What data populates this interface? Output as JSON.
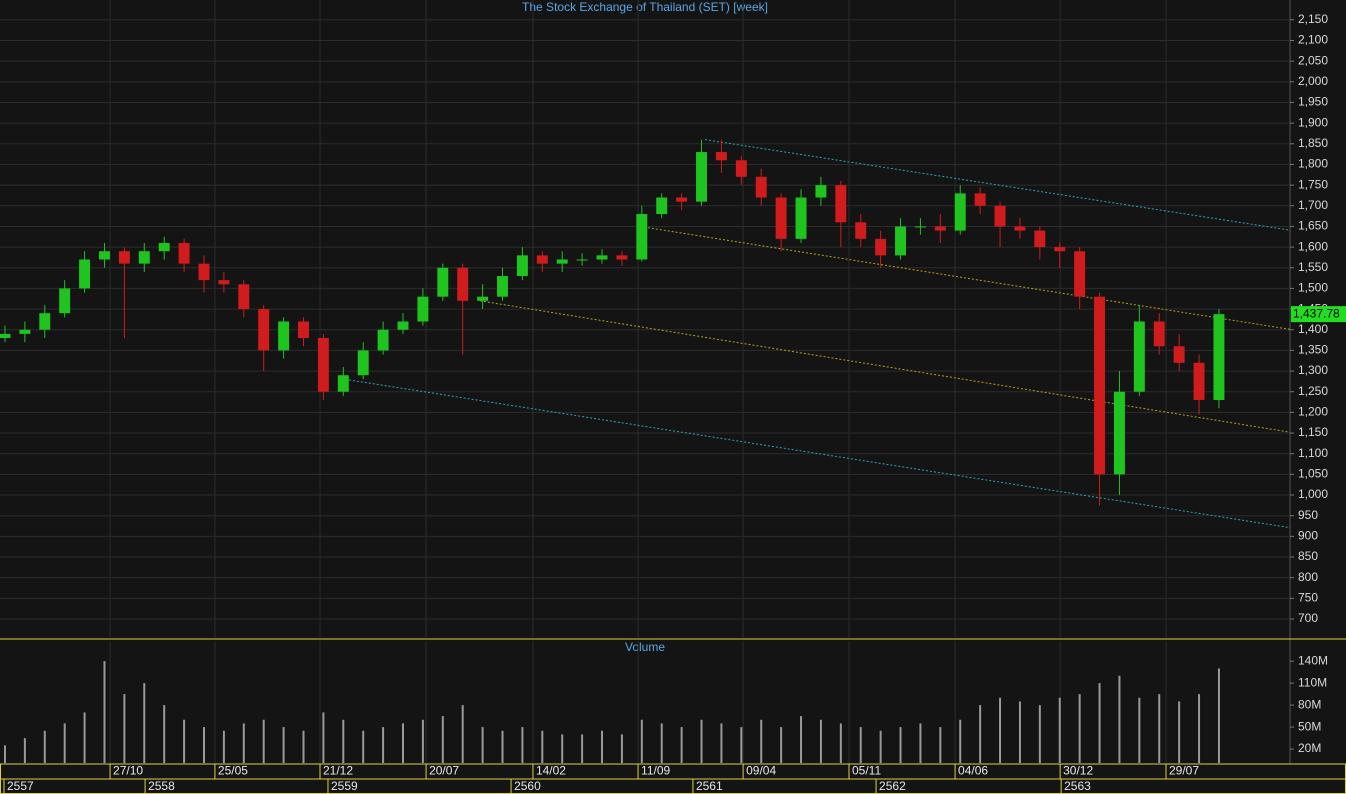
{
  "chart_data": {
    "type": "candlestick",
    "title": "The Stock Exchange of Thailand (SET) [week]",
    "volume_title": "Volume",
    "open": [
      1380,
      1390,
      1400,
      1440,
      1500,
      1570,
      1590,
      1560,
      1590,
      1610,
      1560,
      1520,
      1510,
      1450,
      1350,
      1420,
      1380,
      1250,
      1290,
      1350,
      1400,
      1420,
      1480,
      1550,
      1470,
      1480,
      1530,
      1580,
      1560,
      1570,
      1570,
      1580,
      1570,
      1680,
      1720,
      1710,
      1830,
      1810,
      1770,
      1720,
      1620,
      1720,
      1750,
      1660,
      1620,
      1580,
      1650,
      1650,
      1640,
      1730,
      1700,
      1650,
      1640,
      1600,
      1590,
      1480,
      1050,
      1250,
      1420,
      1360,
      1320,
      1230
    ],
    "high": [
      1410,
      1420,
      1460,
      1520,
      1590,
      1610,
      1600,
      1610,
      1625,
      1620,
      1580,
      1540,
      1520,
      1460,
      1430,
      1430,
      1390,
      1310,
      1370,
      1420,
      1440,
      1500,
      1560,
      1560,
      1510,
      1550,
      1600,
      1590,
      1590,
      1585,
      1595,
      1590,
      1700,
      1730,
      1730,
      1860,
      1860,
      1820,
      1790,
      1730,
      1740,
      1770,
      1760,
      1680,
      1640,
      1670,
      1670,
      1680,
      1750,
      1745,
      1710,
      1670,
      1650,
      1610,
      1600,
      1490,
      1300,
      1460,
      1440,
      1390,
      1340,
      1450
    ],
    "low": [
      1370,
      1370,
      1380,
      1430,
      1490,
      1550,
      1380,
      1540,
      1570,
      1540,
      1490,
      1490,
      1430,
      1300,
      1330,
      1360,
      1230,
      1240,
      1280,
      1340,
      1390,
      1410,
      1470,
      1340,
      1450,
      1470,
      1520,
      1540,
      1540,
      1555,
      1560,
      1555,
      1565,
      1670,
      1690,
      1700,
      1780,
      1750,
      1700,
      1590,
      1610,
      1700,
      1600,
      1600,
      1550,
      1570,
      1630,
      1610,
      1630,
      1680,
      1600,
      1620,
      1570,
      1550,
      1450,
      975,
      1000,
      1240,
      1340,
      1300,
      1195,
      1210
    ],
    "close": [
      1390,
      1400,
      1440,
      1500,
      1570,
      1590,
      1560,
      1590,
      1610,
      1560,
      1520,
      1510,
      1450,
      1350,
      1420,
      1380,
      1250,
      1290,
      1350,
      1400,
      1420,
      1480,
      1550,
      1470,
      1480,
      1530,
      1580,
      1560,
      1570,
      1570,
      1580,
      1570,
      1680,
      1720,
      1710,
      1830,
      1810,
      1770,
      1720,
      1620,
      1720,
      1750,
      1660,
      1620,
      1580,
      1650,
      1650,
      1640,
      1730,
      1700,
      1650,
      1640,
      1600,
      1590,
      1480,
      1050,
      1250,
      1420,
      1360,
      1320,
      1230,
      1437.78
    ],
    "volume": [
      25,
      35,
      45,
      55,
      70,
      140,
      95,
      110,
      80,
      60,
      50,
      45,
      55,
      60,
      50,
      45,
      70,
      60,
      45,
      50,
      55,
      60,
      65,
      80,
      50,
      45,
      50,
      45,
      40,
      40,
      45,
      40,
      60,
      55,
      50,
      60,
      55,
      50,
      60,
      50,
      65,
      60,
      55,
      50,
      45,
      50,
      55,
      50,
      60,
      80,
      90,
      85,
      80,
      90,
      95,
      110,
      120,
      90,
      95,
      85,
      95,
      130
    ],
    "up_color": "#1fc41f",
    "down_color": "#d01c1c",
    "volume_color": "#9a9a9a",
    "xlim": [
      -0.25,
      64.57
    ],
    "ylim": [
      654,
      2198
    ],
    "vlim": [
      1,
      147
    ],
    "yticks": [
      {
        "value": 700,
        "label": "700"
      },
      {
        "value": 750,
        "label": "750"
      },
      {
        "value": 800,
        "label": "800"
      },
      {
        "value": 850,
        "label": "850"
      },
      {
        "value": 900,
        "label": "900"
      },
      {
        "value": 950,
        "label": "950"
      },
      {
        "value": 1000,
        "label": "1,000"
      },
      {
        "value": 1050,
        "label": "1,050"
      },
      {
        "value": 1100,
        "label": "1,100"
      },
      {
        "value": 1150,
        "label": "1,150"
      },
      {
        "value": 1200,
        "label": "1,200"
      },
      {
        "value": 1250,
        "label": "1,250"
      },
      {
        "value": 1300,
        "label": "1,300"
      },
      {
        "value": 1350,
        "label": "1,350"
      },
      {
        "value": 1400,
        "label": "1,400"
      },
      {
        "value": 1450,
        "label": "1,450"
      },
      {
        "value": 1500,
        "label": "1,500"
      },
      {
        "value": 1550,
        "label": "1,550"
      },
      {
        "value": 1600,
        "label": "1,600"
      },
      {
        "value": 1650,
        "label": "1,650"
      },
      {
        "value": 1700,
        "label": "1,700"
      },
      {
        "value": 1750,
        "label": "1,750"
      },
      {
        "value": 1800,
        "label": "1,800"
      },
      {
        "value": 1850,
        "label": "1,850"
      },
      {
        "value": 1900,
        "label": "1,900"
      },
      {
        "value": 1950,
        "label": "1,950"
      },
      {
        "value": 2000,
        "label": "2,000"
      },
      {
        "value": 2050,
        "label": "2,050"
      },
      {
        "value": 2100,
        "label": "2,100"
      },
      {
        "value": 2150,
        "label": "2,150"
      }
    ],
    "vticks": [
      {
        "value": 20,
        "label": "20M"
      },
      {
        "value": 50,
        "label": "50M"
      },
      {
        "value": 80,
        "label": "80M"
      },
      {
        "value": 110,
        "label": "110M"
      },
      {
        "value": 140,
        "label": "140M"
      }
    ],
    "xticks": [
      {
        "value": 5.28,
        "label": "27/10"
      },
      {
        "value": 10.55,
        "label": "25/05"
      },
      {
        "value": 15.83,
        "label": "21/12"
      },
      {
        "value": 21.16,
        "label": "20/07"
      },
      {
        "value": 26.53,
        "label": "14/02"
      },
      {
        "value": 31.81,
        "label": "11/09"
      },
      {
        "value": 37.09,
        "label": "09/04"
      },
      {
        "value": 42.41,
        "label": "05/11"
      },
      {
        "value": 47.74,
        "label": "04/06"
      },
      {
        "value": 53.02,
        "label": "30/12"
      },
      {
        "value": 58.34,
        "label": "29/07"
      }
    ],
    "year_ticks": [
      {
        "value": -0.05,
        "label": "2557"
      },
      {
        "value": 7.04,
        "label": "2558"
      },
      {
        "value": 16.23,
        "label": "2559"
      },
      {
        "value": 25.43,
        "label": "2560"
      },
      {
        "value": 34.57,
        "label": "2561"
      },
      {
        "value": 43.77,
        "label": "2562"
      },
      {
        "value": 53.07,
        "label": "2563"
      }
    ],
    "trendlines": [
      {
        "color": "#2aa6b8",
        "x": [
          35.18,
          64.57
        ],
        "y": [
          1860,
          1641
        ]
      },
      {
        "color": "#b8a020",
        "x": [
          31.91,
          64.57
        ],
        "y": [
          1650,
          1401
        ]
      },
      {
        "color": "#b8a020",
        "x": [
          23.87,
          64.57
        ],
        "y": [
          1470,
          1152
        ]
      },
      {
        "color": "#2aa6b8",
        "x": [
          17.09,
          64.57
        ],
        "y": [
          1280,
          921
        ]
      }
    ],
    "last_price": {
      "value": 1437.78,
      "label": "1,437.78"
    },
    "grid": true
  }
}
